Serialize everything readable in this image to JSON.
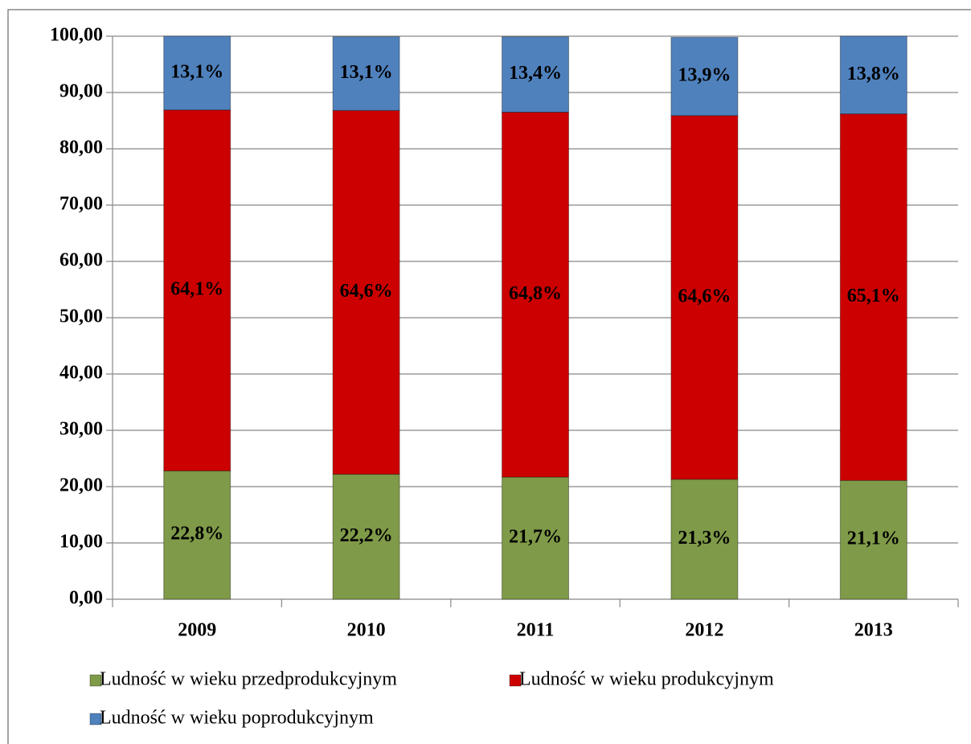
{
  "chart_data": {
    "type": "stacked_bar",
    "categories": [
      "2009",
      "2010",
      "2011",
      "2012",
      "2013"
    ],
    "series": [
      {
        "name": "Ludność w wieku przedprodukcyjnym",
        "color": "#7f9a48",
        "values": [
          22.8,
          22.2,
          21.7,
          21.3,
          21.1
        ],
        "value_labels": [
          "22,8%",
          "22,2%",
          "21,7%",
          "21,3%",
          "21,1%"
        ]
      },
      {
        "name": "Ludność w wieku produkcyjnym",
        "color": "#cc0000",
        "values": [
          64.1,
          64.6,
          64.8,
          64.6,
          65.1
        ],
        "value_labels": [
          "64,1%",
          "64,6%",
          "64,8%",
          "64,6%",
          "65,1%"
        ]
      },
      {
        "name": "Ludność w wieku poprodukcyjnym",
        "color": "#4f81bd",
        "values": [
          13.1,
          13.1,
          13.4,
          13.9,
          13.8
        ],
        "value_labels": [
          "13,1%",
          "13,1%",
          "13,4%",
          "13,9%",
          "13,8%"
        ]
      }
    ],
    "ylim": [
      0,
      100
    ],
    "yticks": [
      {
        "value": 0,
        "label": "0,00"
      },
      {
        "value": 10,
        "label": "10,00"
      },
      {
        "value": 20,
        "label": "20,00"
      },
      {
        "value": 30,
        "label": "30,00"
      },
      {
        "value": 40,
        "label": "40,00"
      },
      {
        "value": 50,
        "label": "50,00"
      },
      {
        "value": 60,
        "label": "60,00"
      },
      {
        "value": 70,
        "label": "70,00"
      },
      {
        "value": 80,
        "label": "80,00"
      },
      {
        "value": 90,
        "label": "90,00"
      },
      {
        "value": 100,
        "label": "100,00"
      }
    ],
    "grid": true,
    "legend": "bottom"
  }
}
